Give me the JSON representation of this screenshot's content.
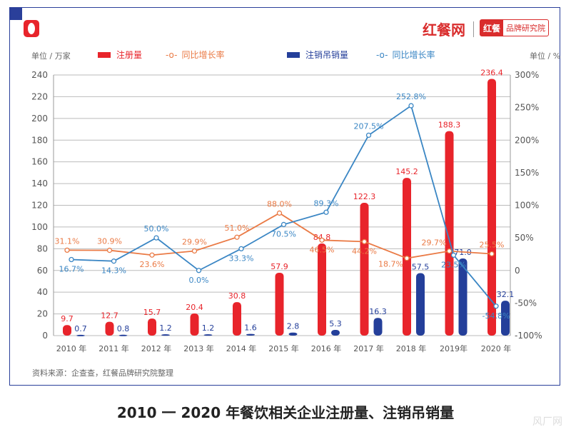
{
  "header": {
    "brand": "红餐网",
    "brand_badge_a": "红餐",
    "brand_badge_b": "品牌研究院"
  },
  "colors": {
    "registrations": "#e8242b",
    "registrations_growth": "#ea7a45",
    "cancellations": "#243f9a",
    "cancellations_growth": "#3a86c4",
    "frame": "#2a3f9a"
  },
  "chart_data": {
    "type": "bar+line",
    "title": "2010 一 2020 年餐饮相关企业注册量、注销吊销量",
    "ylabel_left": "单位 / 万家",
    "ylabel_right": "单位 / %",
    "categories": [
      "2010 年",
      "2011 年",
      "2012 年",
      "2013 年",
      "2014 年",
      "2015 年",
      "2016 年",
      "2017 年",
      "2018 年",
      "2019年",
      "2020 年"
    ],
    "ylim_left": [
      0,
      240
    ],
    "yticks_left": [
      "0",
      "20",
      "40",
      "60",
      "80",
      "100",
      "120",
      "140",
      "160",
      "180",
      "200",
      "220",
      "240"
    ],
    "ylim_right": [
      -100,
      300
    ],
    "yticks_right": [
      "-100%",
      "-50%",
      "0",
      "50%",
      "100%",
      "150%",
      "200%",
      "250%",
      "300%"
    ],
    "grid": true,
    "legend_position": "top",
    "series": [
      {
        "name": "注册量",
        "type": "bar",
        "axis": "left",
        "values": [
          9.7,
          12.7,
          15.7,
          20.4,
          30.8,
          57.9,
          84.8,
          122.3,
          145.2,
          188.3,
          236.4
        ],
        "labels": [
          "9.7",
          "12.7",
          "15.7",
          "20.4",
          "30.8",
          "57.9",
          "84.8",
          "122.3",
          "145.2",
          "188.3",
          "236.4"
        ]
      },
      {
        "name": "同比增长率",
        "type": "line",
        "axis": "right",
        "values": [
          31.1,
          30.9,
          23.6,
          29.9,
          51.0,
          88.0,
          46.5,
          44.2,
          18.7,
          29.7,
          25.5
        ],
        "labels": [
          "31.1%",
          "30.9%",
          "23.6%",
          "29.9%",
          "51.0%",
          "88.0%",
          "46.5%",
          "44.2%",
          "18.7%",
          "29.7%",
          "25.5%"
        ]
      },
      {
        "name": "注销吊销量",
        "type": "bar",
        "axis": "left",
        "values": [
          0.7,
          0.8,
          1.2,
          1.2,
          1.6,
          2.8,
          5.3,
          16.3,
          57.5,
          71.0,
          32.1
        ],
        "labels": [
          "0.7",
          "0.8",
          "1.2",
          "1.2",
          "1.6",
          "2.8",
          "5.3",
          "16.3",
          "57.5",
          "71.0",
          "32.1"
        ]
      },
      {
        "name": "同比增长率",
        "type": "line",
        "axis": "right",
        "values": [
          16.7,
          14.3,
          50.0,
          0.0,
          33.3,
          70.5,
          89.3,
          207.5,
          252.8,
          23.5,
          -54.8
        ],
        "labels": [
          "16.7%",
          "14.3%",
          "50.0%",
          "0.0%",
          "33.3%",
          "70.5%",
          "89.3%",
          "207.5%",
          "252.8%",
          "23.5%",
          "-54.8%"
        ]
      }
    ],
    "source": "资料来源：企查查，红餐品牌研究院整理"
  },
  "watermark": "风厂网"
}
